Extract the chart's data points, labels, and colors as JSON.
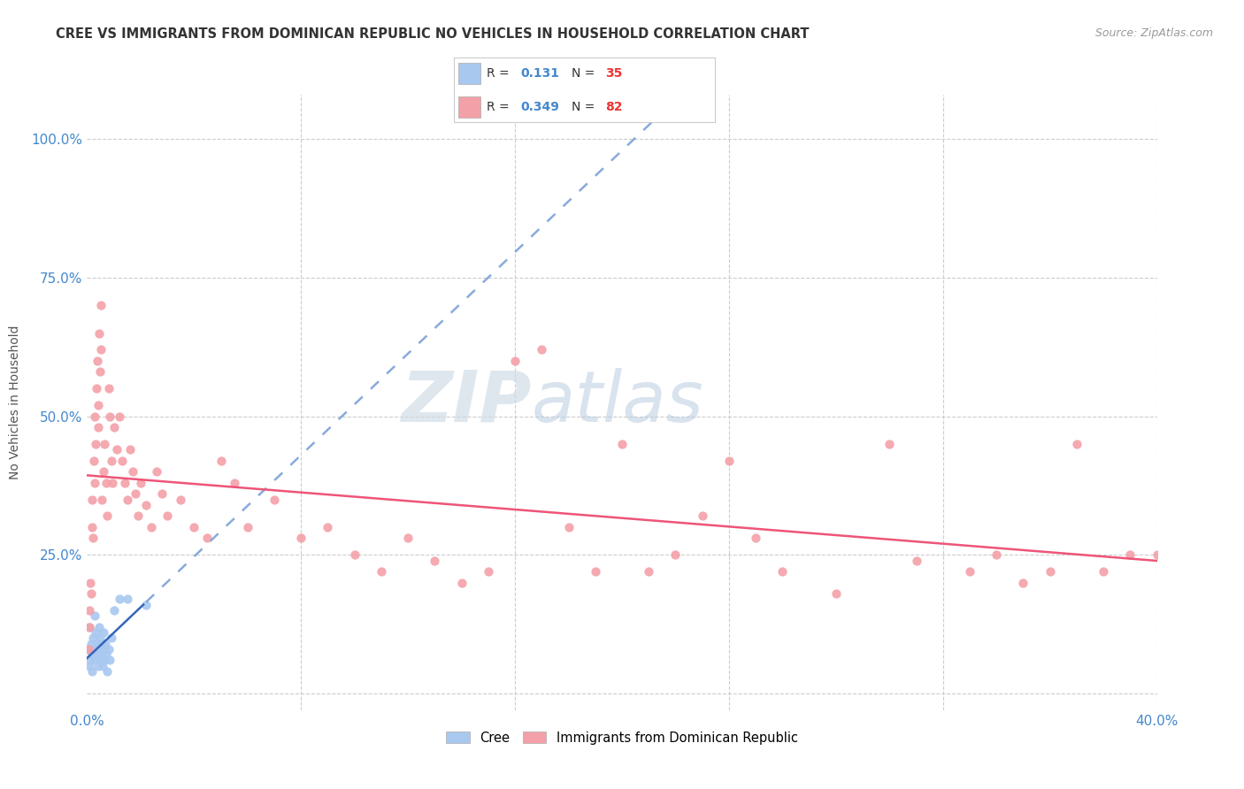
{
  "title": "CREE VS IMMIGRANTS FROM DOMINICAN REPUBLIC NO VEHICLES IN HOUSEHOLD CORRELATION CHART",
  "source": "Source: ZipAtlas.com",
  "ylabel": "No Vehicles in Household",
  "ytick_values": [
    0,
    25,
    50,
    75,
    100
  ],
  "ytick_labels": [
    "",
    "25.0%",
    "50.0%",
    "75.0%",
    "100.0%"
  ],
  "xlim": [
    0,
    40
  ],
  "ylim": [
    -3,
    108
  ],
  "legend_R1": "0.131",
  "legend_N1": "35",
  "legend_R2": "0.349",
  "legend_N2": "82",
  "watermark_zip": "ZIP",
  "watermark_atlas": "atlas",
  "color_blue": "#a8c8f0",
  "color_pink": "#f4a0a8",
  "color_blue_line": "#3366bb",
  "color_pink_line": "#ee5577",
  "color_blue_dashed": "#88aadd",
  "color_axis_labels": "#4488cc",
  "color_red_text": "#ee3333",
  "cree_x": [
    0.05,
    0.08,
    0.1,
    0.12,
    0.15,
    0.18,
    0.2,
    0.22,
    0.25,
    0.28,
    0.3,
    0.32,
    0.35,
    0.38,
    0.4,
    0.42,
    0.45,
    0.48,
    0.5,
    0.52,
    0.55,
    0.58,
    0.6,
    0.62,
    0.65,
    0.68,
    0.7,
    0.75,
    0.8,
    0.85,
    0.9,
    1.0,
    1.2,
    1.5,
    2.2
  ],
  "cree_y": [
    8,
    5,
    12,
    6,
    9,
    4,
    7,
    10,
    8,
    6,
    14,
    11,
    9,
    7,
    5,
    8,
    12,
    10,
    6,
    9,
    7,
    5,
    11,
    8,
    6,
    9,
    7,
    4,
    8,
    6,
    10,
    15,
    17,
    17,
    16
  ],
  "dr_x": [
    0.05,
    0.08,
    0.1,
    0.12,
    0.15,
    0.18,
    0.2,
    0.22,
    0.25,
    0.28,
    0.3,
    0.32,
    0.35,
    0.38,
    0.4,
    0.42,
    0.45,
    0.48,
    0.5,
    0.52,
    0.55,
    0.6,
    0.65,
    0.7,
    0.75,
    0.8,
    0.85,
    0.9,
    0.95,
    1.0,
    1.1,
    1.2,
    1.3,
    1.4,
    1.5,
    1.6,
    1.7,
    1.8,
    1.9,
    2.0,
    2.2,
    2.4,
    2.6,
    2.8,
    3.0,
    3.5,
    4.0,
    4.5,
    5.0,
    5.5,
    6.0,
    7.0,
    8.0,
    9.0,
    10.0,
    11.0,
    12.0,
    13.0,
    14.0,
    15.0,
    17.0,
    19.0,
    20.0,
    22.0,
    24.0,
    25.0,
    26.0,
    28.0,
    30.0,
    31.0,
    33.0,
    34.0,
    35.0,
    36.0,
    37.0,
    38.0,
    39.0,
    40.0,
    16.0,
    18.0,
    21.0,
    23.0
  ],
  "dr_y": [
    8,
    12,
    15,
    20,
    18,
    30,
    35,
    28,
    42,
    38,
    50,
    45,
    55,
    60,
    48,
    52,
    65,
    58,
    70,
    62,
    35,
    40,
    45,
    38,
    32,
    55,
    50,
    42,
    38,
    48,
    44,
    50,
    42,
    38,
    35,
    44,
    40,
    36,
    32,
    38,
    34,
    30,
    40,
    36,
    32,
    35,
    30,
    28,
    42,
    38,
    30,
    35,
    28,
    30,
    25,
    22,
    28,
    24,
    20,
    22,
    62,
    22,
    45,
    25,
    42,
    28,
    22,
    18,
    45,
    24,
    22,
    25,
    20,
    22,
    45,
    22,
    25,
    25,
    60,
    30,
    22,
    32
  ]
}
